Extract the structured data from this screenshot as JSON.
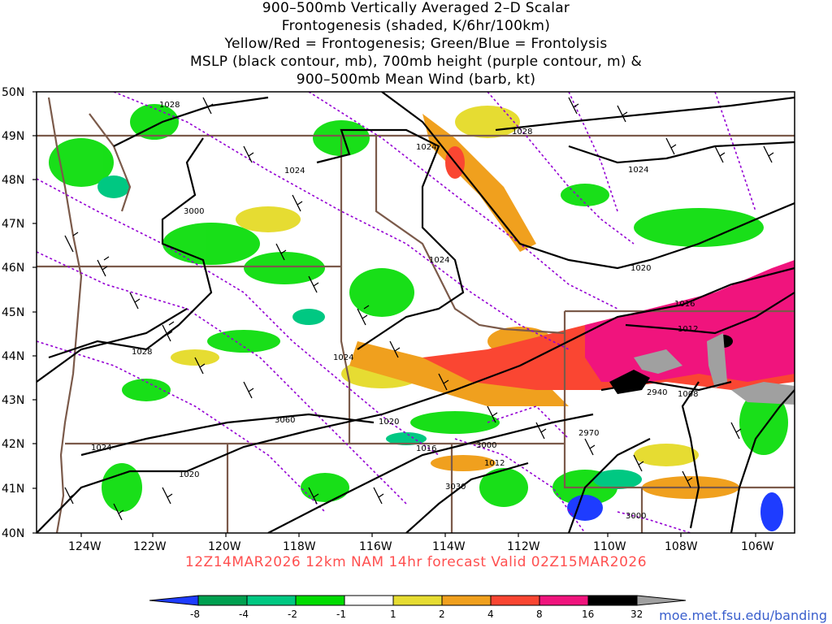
{
  "title": {
    "line1": "900–500mb Vertically Averaged 2–D Scalar",
    "line2": "Frontogenesis (shaded, K/6hr/100km)",
    "line3": "Yellow/Red = Frontogenesis;  Green/Blue = Frontolysis",
    "line4": "MSLP (black contour, mb), 700mb height (purple contour, m) &",
    "line5": "900–500mb Mean Wind (barb, kt)"
  },
  "axes": {
    "lat_labels": [
      "50N",
      "49N",
      "48N",
      "47N",
      "46N",
      "45N",
      "44N",
      "43N",
      "42N",
      "41N",
      "40N"
    ],
    "lon_labels": [
      "124W",
      "122W",
      "120W",
      "118W",
      "116W",
      "114W",
      "112W",
      "110W",
      "108W",
      "106W"
    ]
  },
  "contours": {
    "mslp_labels": [
      "1028",
      "1028",
      "1024",
      "1024",
      "1024",
      "1024",
      "1028",
      "1024",
      "1020",
      "1020",
      "1016",
      "1012",
      "1016",
      "1012",
      "1008",
      "1024",
      "1020"
    ],
    "height_labels": [
      "3000",
      "3060",
      "3000",
      "3030",
      "2970",
      "2940",
      "3000"
    ]
  },
  "valid_line": "12Z14MAR2026  12km NAM 14hr forecast Valid 02Z15MAR2026",
  "colorbar": {
    "ticks": [
      "-8",
      "-4",
      "-2",
      "-1",
      "1",
      "2",
      "4",
      "8",
      "16",
      "32"
    ],
    "colors": [
      "#1e3cff",
      "#00a050",
      "#00c882",
      "#00dc00",
      "#ffffff",
      "#e6dc32",
      "#f0a01e",
      "#fa4632",
      "#f0147d",
      "#000000",
      "#a0a0a0"
    ]
  },
  "footer_url": "moe.met.fsu.edu/banding",
  "palette": {
    "state_border": "#7b5a4a",
    "mslp": "#000000",
    "height": "#9400d3",
    "valid_text": "#ff5050"
  }
}
